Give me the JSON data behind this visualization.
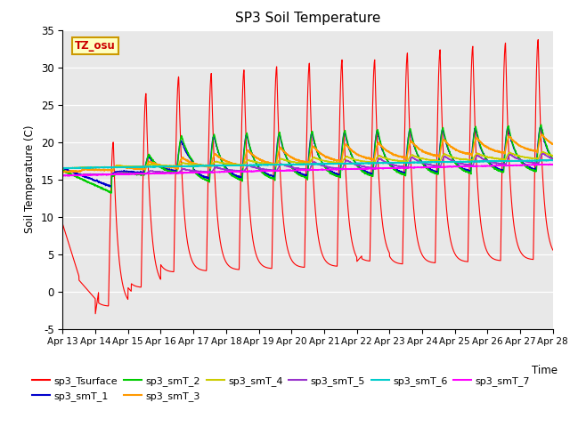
{
  "title": "SP3 Soil Temperature",
  "ylabel": "Soil Temperature (C)",
  "xlabel": "Time",
  "tz_label": "TZ_osu",
  "ylim": [
    -5,
    35
  ],
  "xlim": [
    0,
    15
  ],
  "x_tick_labels": [
    "Apr 13",
    "Apr 14",
    "Apr 15",
    "Apr 16",
    "Apr 17",
    "Apr 18",
    "Apr 19",
    "Apr 20",
    "Apr 21",
    "Apr 22",
    "Apr 23",
    "Apr 24",
    "Apr 25",
    "Apr 26",
    "Apr 27",
    "Apr 28"
  ],
  "bg_color": "#e8e8e8",
  "fig_bg": "#ffffff",
  "series_colors": {
    "sp3_Tsurface": "#ff0000",
    "sp3_smT_1": "#0000cc",
    "sp3_smT_2": "#00cc00",
    "sp3_smT_3": "#ff9900",
    "sp3_smT_4": "#cccc00",
    "sp3_smT_5": "#9933cc",
    "sp3_smT_6": "#00cccc",
    "sp3_smT_7": "#ff00ff"
  },
  "legend_order": [
    "sp3_Tsurface",
    "sp3_smT_1",
    "sp3_smT_2",
    "sp3_smT_3",
    "sp3_smT_4",
    "sp3_smT_5",
    "sp3_smT_6",
    "sp3_smT_7"
  ]
}
